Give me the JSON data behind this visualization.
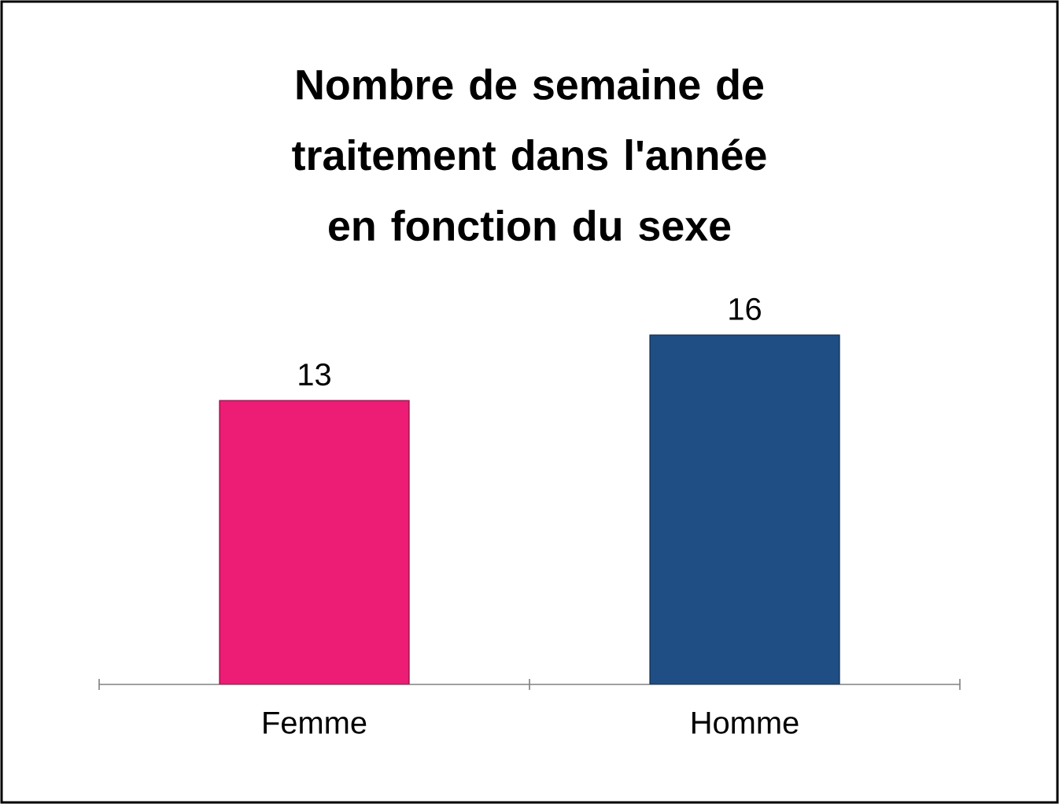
{
  "chart_data": {
    "type": "bar",
    "title": "Nombre de semaine de traitement dans l'année en fonction du sexe",
    "categories": [
      "Femme",
      "Homme"
    ],
    "values": [
      13,
      16
    ],
    "colors": [
      "#ed1c74",
      "#1f4e84"
    ],
    "data_labels": true
  }
}
